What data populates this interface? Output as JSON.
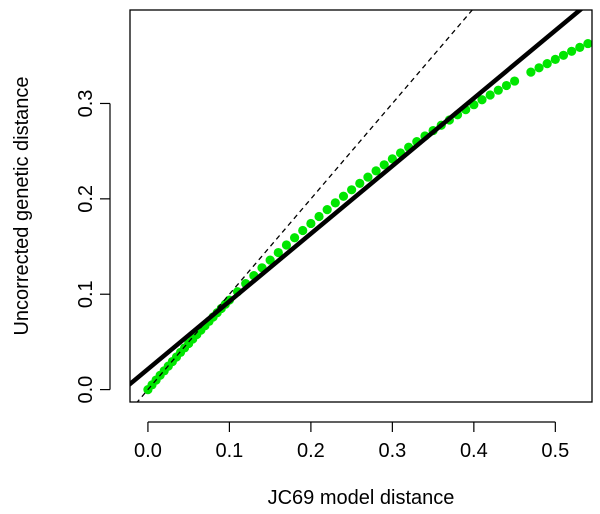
{
  "chart_data": {
    "type": "scatter",
    "title": "",
    "xlabel": "JC69 model distance",
    "ylabel": "Uncorrected genetic distance",
    "xlim": [
      -0.022,
      0.545
    ],
    "ylim": [
      -0.013,
      0.398
    ],
    "x_ticks": [
      0.0,
      0.1,
      0.2,
      0.3,
      0.4,
      0.5
    ],
    "x_tick_labels": [
      "0.0",
      "0.1",
      "0.2",
      "0.3",
      "0.4",
      "0.5"
    ],
    "y_ticks": [
      0.0,
      0.1,
      0.2,
      0.3
    ],
    "y_tick_labels": [
      "0.0",
      "0.1",
      "0.2",
      "0.3"
    ],
    "grid": false,
    "points": {
      "color": "#00e600",
      "x": [
        0.0,
        0.005,
        0.01,
        0.015,
        0.02,
        0.025,
        0.03,
        0.035,
        0.04,
        0.045,
        0.05,
        0.055,
        0.06,
        0.065,
        0.07,
        0.075,
        0.08,
        0.085,
        0.09,
        0.095,
        0.1,
        0.11,
        0.12,
        0.13,
        0.14,
        0.15,
        0.16,
        0.17,
        0.18,
        0.19,
        0.2,
        0.21,
        0.22,
        0.23,
        0.24,
        0.25,
        0.26,
        0.27,
        0.28,
        0.29,
        0.3,
        0.31,
        0.32,
        0.33,
        0.34,
        0.35,
        0.36,
        0.37,
        0.38,
        0.39,
        0.4,
        0.41,
        0.42,
        0.43,
        0.44,
        0.45,
        0.47,
        0.48,
        0.49,
        0.5,
        0.51,
        0.52,
        0.53,
        0.54
      ],
      "y": [
        0.0,
        0.005,
        0.01,
        0.015,
        0.0197,
        0.0246,
        0.0294,
        0.0342,
        0.039,
        0.0437,
        0.0484,
        0.0531,
        0.0578,
        0.0624,
        0.067,
        0.0716,
        0.0761,
        0.0806,
        0.0851,
        0.0895,
        0.0939,
        0.1026,
        0.1111,
        0.1195,
        0.1277,
        0.1358,
        0.1437,
        0.1516,
        0.1592,
        0.1668,
        0.1742,
        0.1815,
        0.1887,
        0.1958,
        0.2027,
        0.2095,
        0.2162,
        0.2228,
        0.2293,
        0.2357,
        0.2419,
        0.2481,
        0.2541,
        0.26,
        0.2659,
        0.2716,
        0.2772,
        0.2827,
        0.2882,
        0.2935,
        0.2987,
        0.3039,
        0.3089,
        0.3139,
        0.3188,
        0.3235,
        0.3329,
        0.3374,
        0.3418,
        0.3462,
        0.3505,
        0.3547,
        0.3588,
        0.3628
      ]
    },
    "lines": [
      {
        "kind": "regression",
        "style": "solid",
        "color": "#000000",
        "intercept": 0.0215,
        "slope": 0.71
      },
      {
        "kind": "identity",
        "style": "dashed",
        "color": "#000000",
        "intercept": 0.0,
        "slope": 1.0
      }
    ]
  }
}
